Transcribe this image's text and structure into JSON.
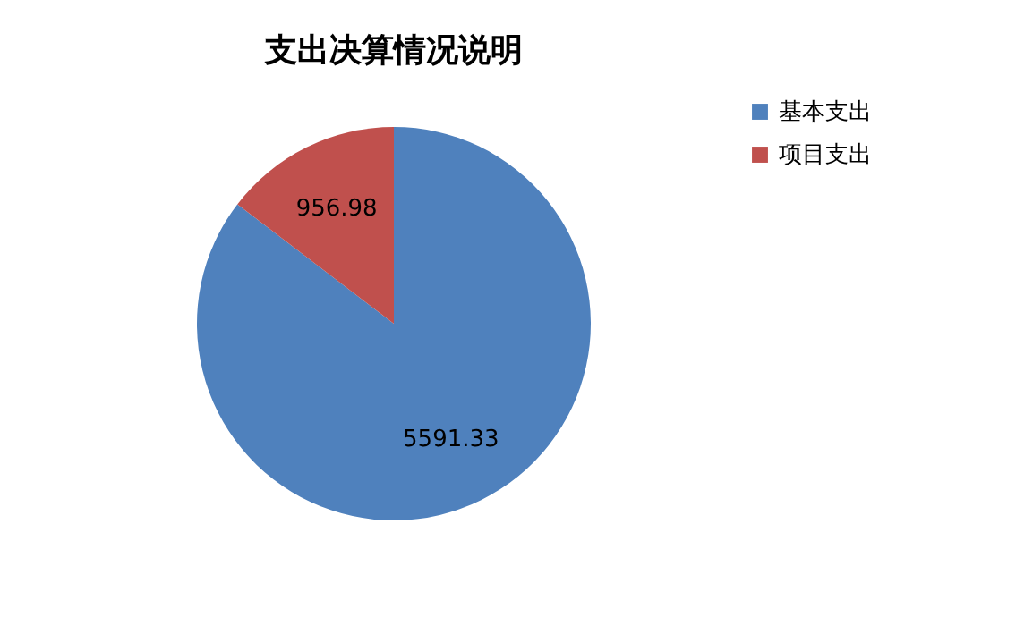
{
  "chart_data": {
    "type": "pie",
    "title": "支出决算情况说明",
    "categories": [
      "基本支出",
      "项目支出"
    ],
    "values": [
      5591.33,
      956.98
    ],
    "colors": [
      "#4f81bd",
      "#c0504d"
    ],
    "data_labels": true,
    "legend": "right"
  }
}
